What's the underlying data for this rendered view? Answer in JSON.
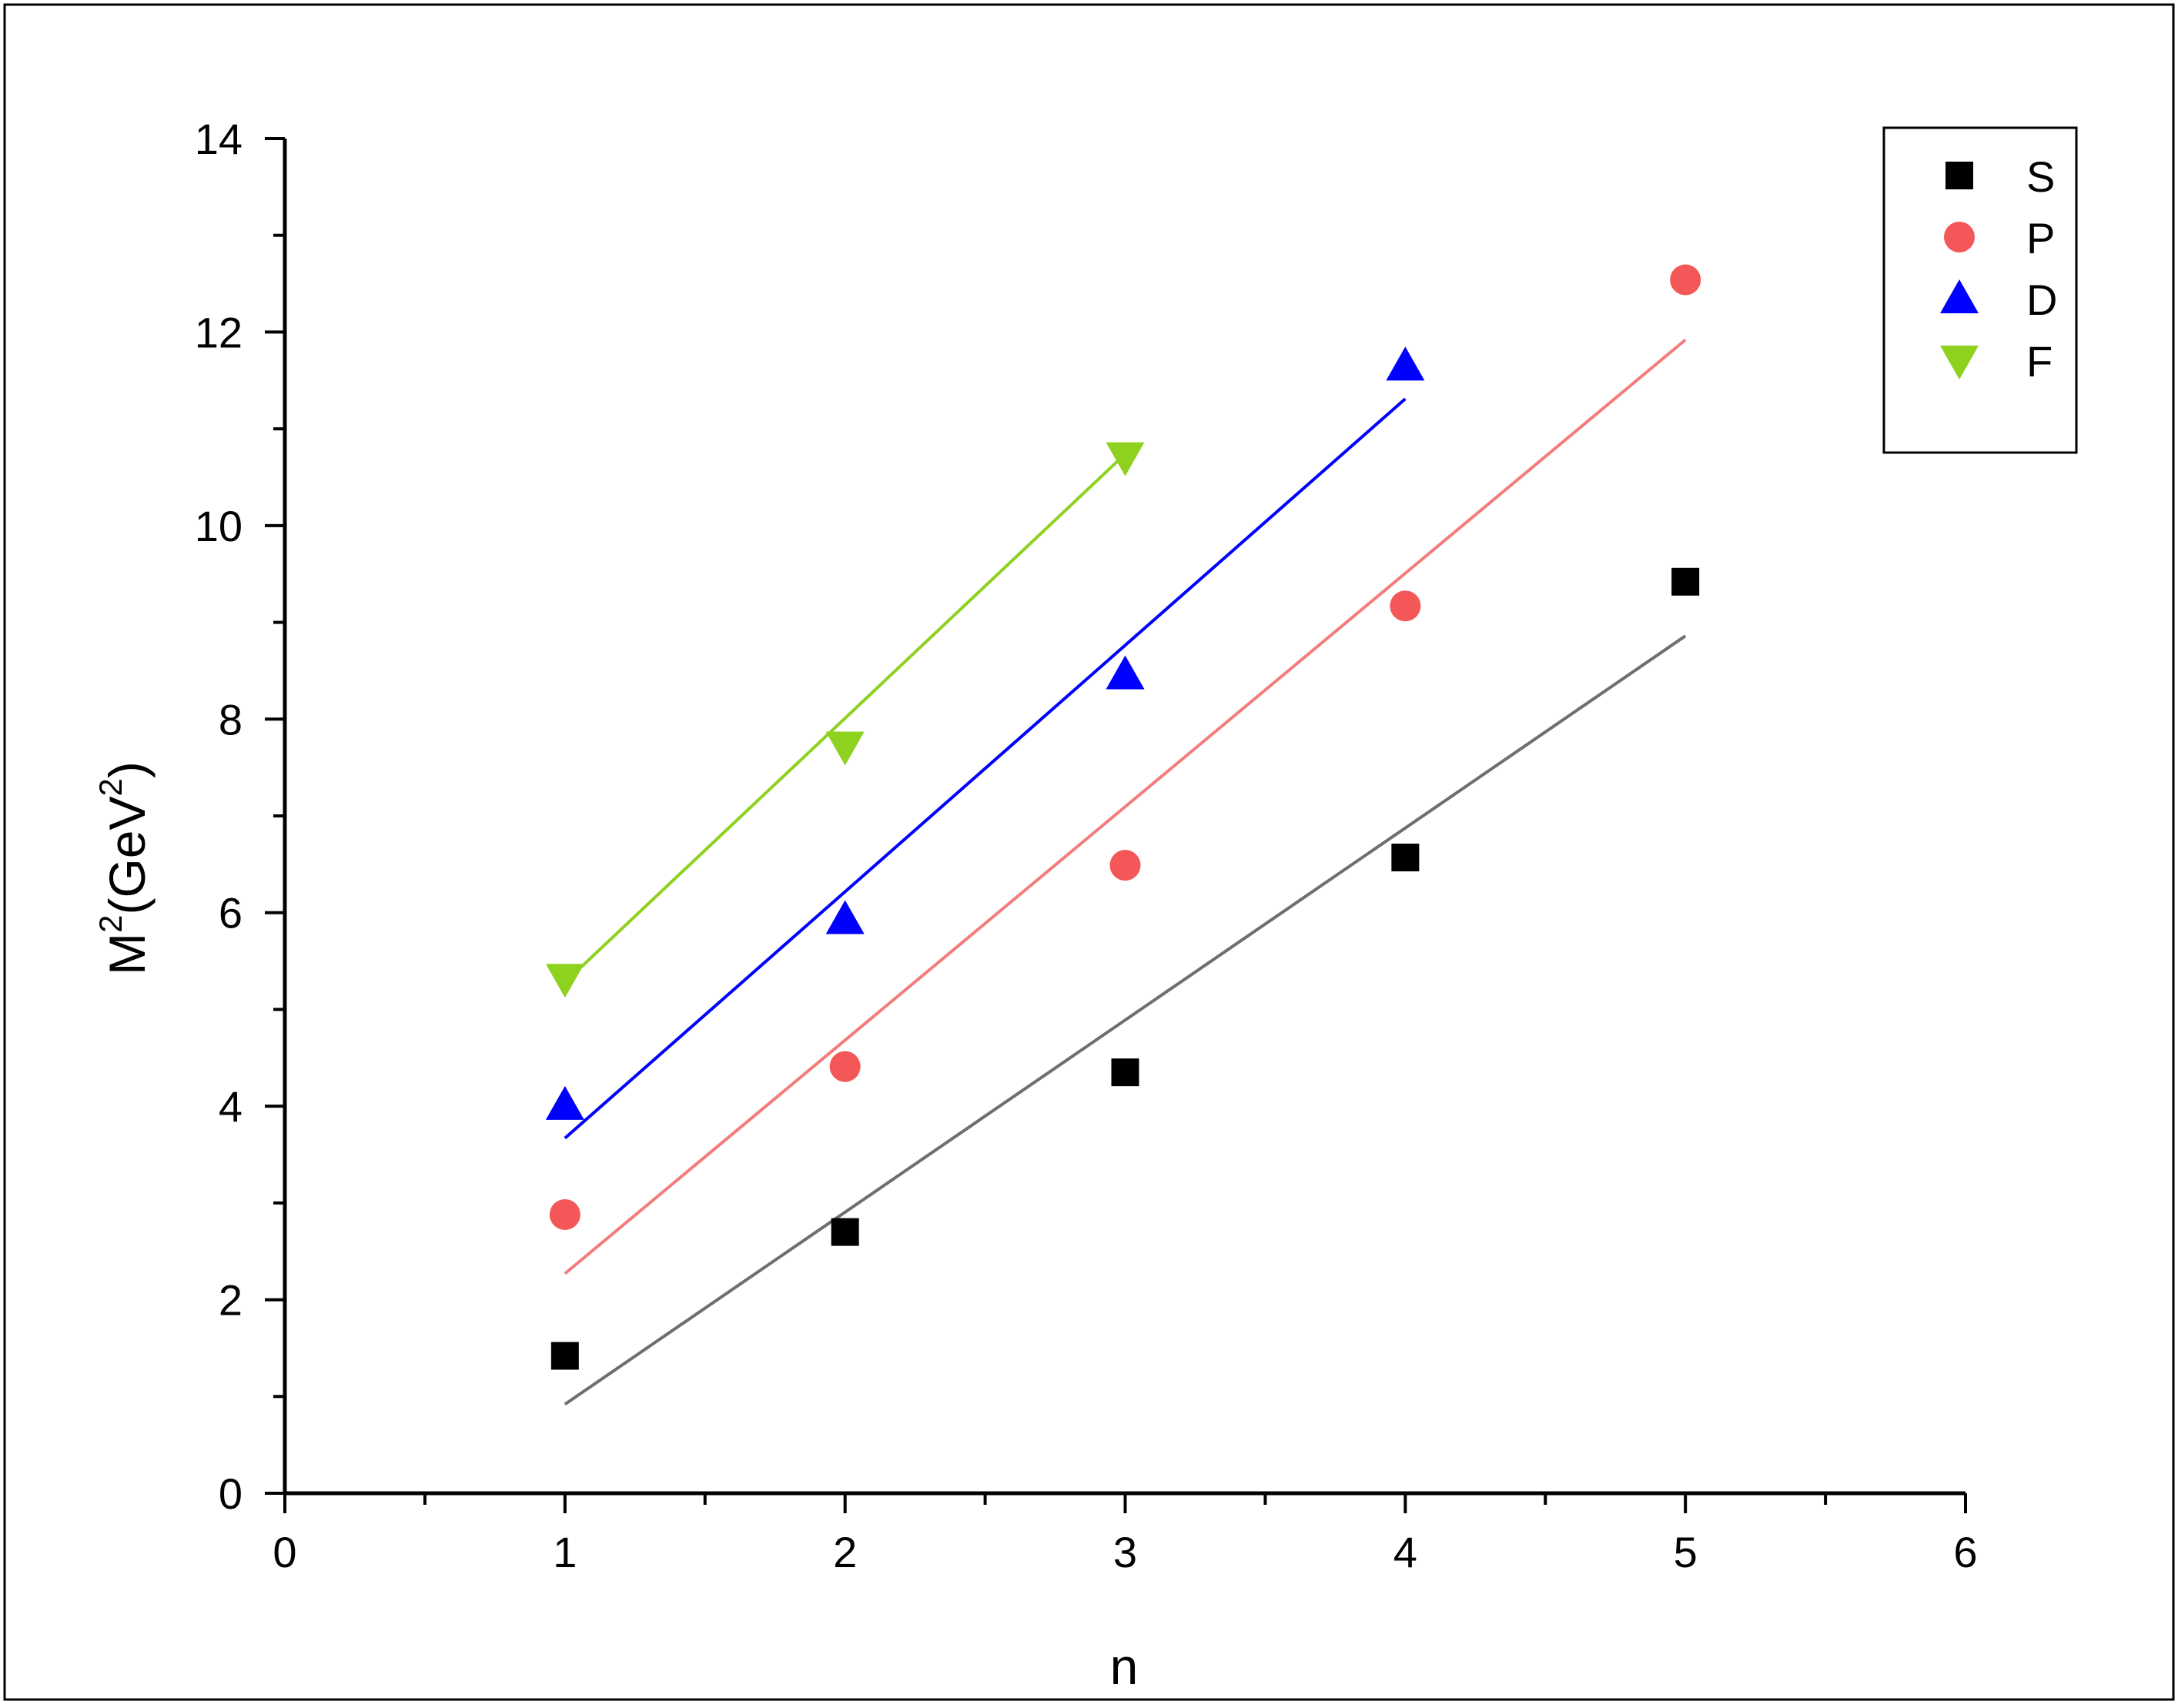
{
  "chart_data": {
    "type": "scatter",
    "xlabel": "n",
    "ylabel": {
      "base": "M",
      "sup1": "2",
      "mid": "(GeV",
      "sup2": "2",
      "end": ")"
    },
    "xlim": [
      0,
      6
    ],
    "ylim": [
      0,
      14
    ],
    "x_ticks": [
      0,
      1,
      2,
      3,
      4,
      5,
      6
    ],
    "y_ticks": [
      0,
      2,
      4,
      6,
      8,
      10,
      12,
      14
    ],
    "grid": false,
    "legend_position": "top-right",
    "series": [
      {
        "name": "S",
        "marker": "square",
        "color": "#000000",
        "line_color": "#6e6e6e",
        "x": [
          1,
          2,
          3,
          4,
          5
        ],
        "y": [
          1.42,
          2.7,
          4.35,
          6.57,
          9.42
        ],
        "fit": {
          "x": [
            1,
            5
          ],
          "y": [
            0.92,
            8.86
          ]
        }
      },
      {
        "name": "P",
        "marker": "circle",
        "color": "#f45757",
        "line_color": "#f47c7c",
        "x": [
          1,
          2,
          3,
          4,
          5
        ],
        "y": [
          2.88,
          4.41,
          6.49,
          9.17,
          12.54
        ],
        "fit": {
          "x": [
            1,
            5
          ],
          "y": [
            2.27,
            11.92
          ]
        }
      },
      {
        "name": "D",
        "marker": "triangle-up",
        "color": "#0000ff",
        "line_color": "#0000ff",
        "x": [
          1,
          2,
          3,
          4
        ],
        "y": [
          4.01,
          5.93,
          8.46,
          11.65
        ],
        "fit": {
          "x": [
            1,
            4
          ],
          "y": [
            3.67,
            11.31
          ]
        }
      },
      {
        "name": "F",
        "marker": "triangle-down",
        "color": "#8ed11f",
        "line_color": "#8ed11f",
        "x": [
          1,
          2,
          3
        ],
        "y": [
          5.32,
          7.72,
          10.71
        ],
        "fit": {
          "x": [
            1,
            3
          ],
          "y": [
            5.28,
            10.74
          ]
        }
      }
    ]
  }
}
